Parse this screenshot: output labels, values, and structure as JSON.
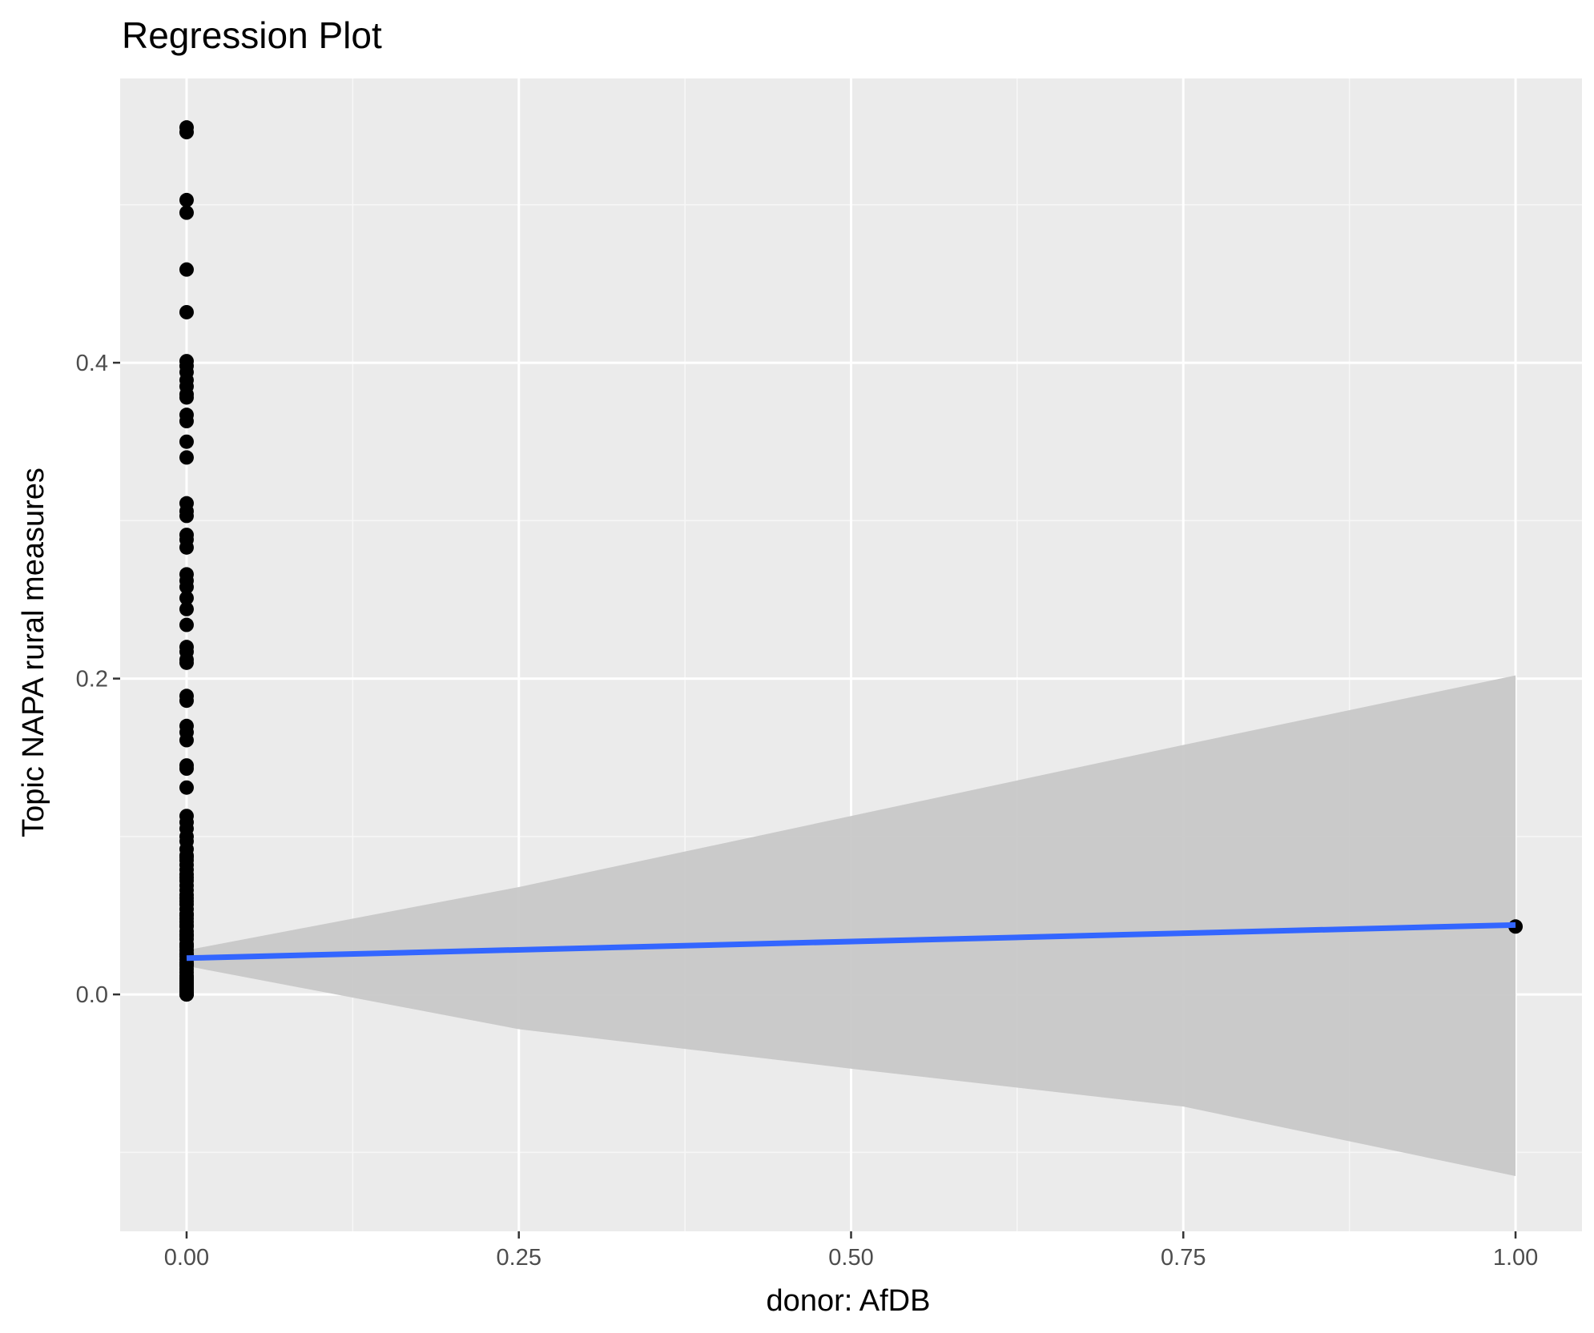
{
  "chart_data": {
    "type": "scatter",
    "title": "Regression Plot",
    "xlabel": "donor: AfDB",
    "ylabel": "Topic NAPA rural measures",
    "xlim": [
      -0.05,
      1.05
    ],
    "ylim": [
      -0.15,
      0.58
    ],
    "x_ticks": [
      0.0,
      0.25,
      0.5,
      0.75,
      1.0
    ],
    "x_tick_labels": [
      "0.00",
      "0.25",
      "0.50",
      "0.75",
      "1.00"
    ],
    "y_ticks": [
      0.0,
      0.2,
      0.4
    ],
    "y_tick_labels": [
      "0.0",
      "0.2",
      "0.4"
    ],
    "x_minor_ticks": [
      0.125,
      0.375,
      0.625,
      0.875
    ],
    "y_minor_ticks": [
      -0.1,
      0.1,
      0.3,
      0.5
    ],
    "grid": true,
    "legend": "none",
    "series": [
      {
        "type": "scatter",
        "x": [
          0,
          0,
          0,
          0,
          0,
          0,
          0,
          0,
          0,
          0,
          0,
          0,
          0,
          0,
          0,
          0,
          0,
          0,
          0,
          0,
          0,
          0,
          0,
          0,
          0,
          0,
          0,
          0,
          0,
          0,
          0,
          0,
          0,
          0,
          0,
          0,
          0,
          0,
          0,
          0,
          0,
          0,
          0,
          0,
          0,
          0,
          0,
          0,
          0,
          0,
          0,
          0,
          0,
          0,
          0,
          0,
          0,
          0,
          0,
          0,
          0,
          0,
          0,
          0,
          0,
          0,
          0,
          0,
          0,
          0,
          0,
          0,
          0,
          0,
          0,
          0,
          0,
          0,
          0,
          0,
          0,
          0,
          0,
          0,
          0,
          0,
          0,
          0,
          0,
          0,
          0,
          0,
          0,
          0,
          0,
          0,
          0,
          0,
          0,
          0,
          0,
          1
        ],
        "y": [
          0.549,
          0.546,
          0.503,
          0.495,
          0.459,
          0.432,
          0.401,
          0.398,
          0.394,
          0.389,
          0.385,
          0.38,
          0.378,
          0.367,
          0.363,
          0.35,
          0.34,
          0.311,
          0.306,
          0.303,
          0.291,
          0.288,
          0.283,
          0.266,
          0.262,
          0.258,
          0.251,
          0.244,
          0.234,
          0.22,
          0.217,
          0.212,
          0.21,
          0.189,
          0.186,
          0.17,
          0.166,
          0.161,
          0.145,
          0.143,
          0.131,
          0.113,
          0.109,
          0.105,
          0.1,
          0.097,
          0.092,
          0.088,
          0.085,
          0.082,
          0.079,
          0.076,
          0.072,
          0.069,
          0.066,
          0.063,
          0.059,
          0.057,
          0.054,
          0.051,
          0.048,
          0.046,
          0.043,
          0.04,
          0.038,
          0.035,
          0.032,
          0.03,
          0.028,
          0.026,
          0.024,
          0.022,
          0.02,
          0.018,
          0.016,
          0.014,
          0.012,
          0.01,
          0.009,
          0.008,
          0.007,
          0.006,
          0.005,
          0.004,
          0.003,
          0.002,
          0.001,
          0.0,
          0.0,
          0.0,
          0.0,
          0.011,
          0.019,
          0.025,
          0.031,
          0.037,
          0.044,
          0.05,
          0.061,
          0.074,
          0.087,
          0.043
        ],
        "color": "#000000"
      },
      {
        "type": "line",
        "x": [
          0,
          1
        ],
        "y": [
          0.023,
          0.044
        ],
        "color": "#3366ff"
      },
      {
        "type": "area",
        "x": [
          0,
          0.25,
          0.5,
          0.75,
          1.0
        ],
        "upper": [
          0.028,
          0.068,
          0.113,
          0.158,
          0.202
        ],
        "lower": [
          0.018,
          -0.022,
          -0.047,
          -0.071,
          -0.115
        ],
        "color": "#999999"
      }
    ],
    "colors": {
      "panel_background": "#ebebeb",
      "grid_major": "#ffffff",
      "grid_minor": "#f7f7f7",
      "regression_line": "#3366ff",
      "confidence_band": "#c8c8c8",
      "points": "#000000"
    }
  }
}
